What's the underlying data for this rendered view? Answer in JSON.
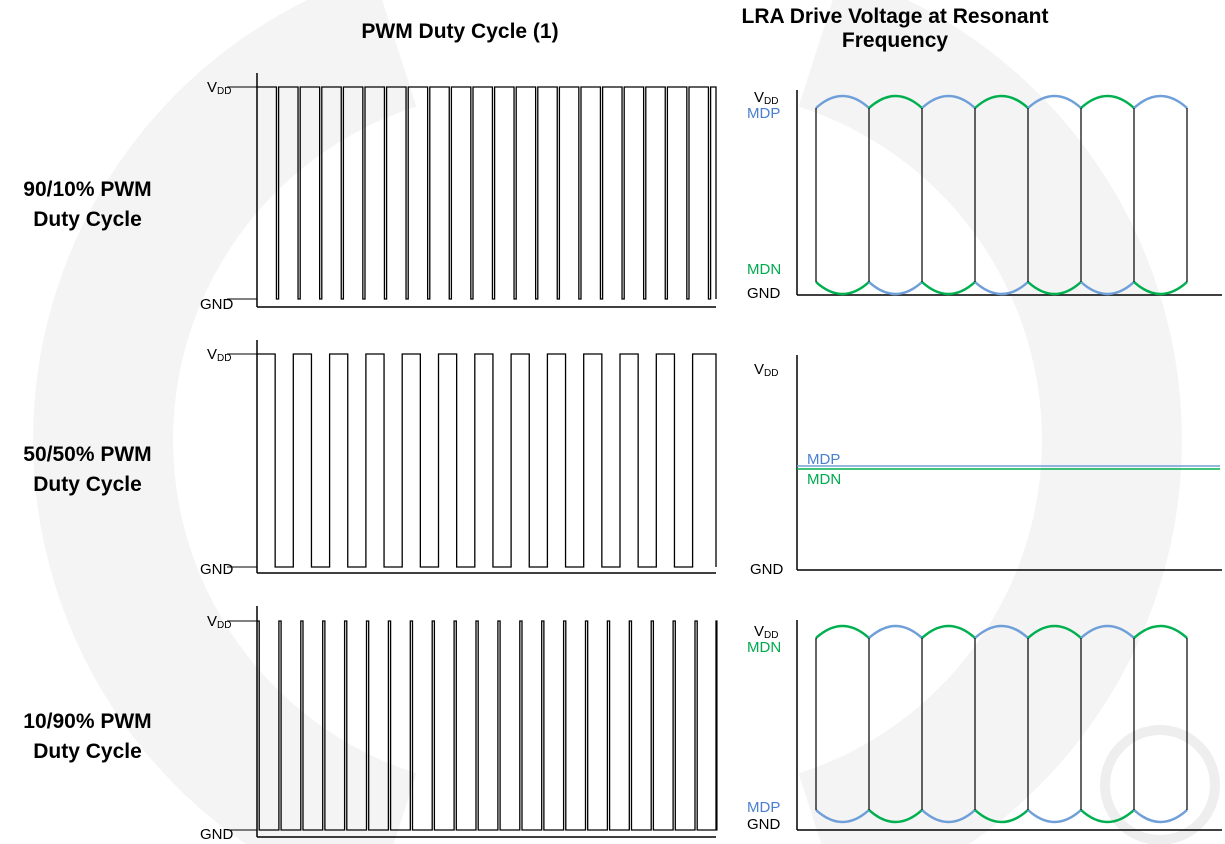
{
  "titles": {
    "left": "PWM Duty Cycle (1)",
    "right_line1": "LRA Drive Voltage at Resonant",
    "right_line2": "Frequency"
  },
  "rows": [
    {
      "label_line1": "90/10% PWM",
      "label_line2": "Duty Cycle",
      "duty": 0.9
    },
    {
      "label_line1": "50/50% PWM",
      "label_line2": "Duty Cycle",
      "duty": 0.5
    },
    {
      "label_line1": "10/90% PWM",
      "label_line2": "Duty Cycle",
      "duty": 0.1
    }
  ],
  "labels": {
    "vdd_main": "V",
    "vdd_sub": "DD",
    "gnd": "GND",
    "mdp": "MDP",
    "mdn": "MDN"
  },
  "colors": {
    "mdp": "#6f9fd8",
    "mdn": "#00b050",
    "line": "#000000"
  }
}
